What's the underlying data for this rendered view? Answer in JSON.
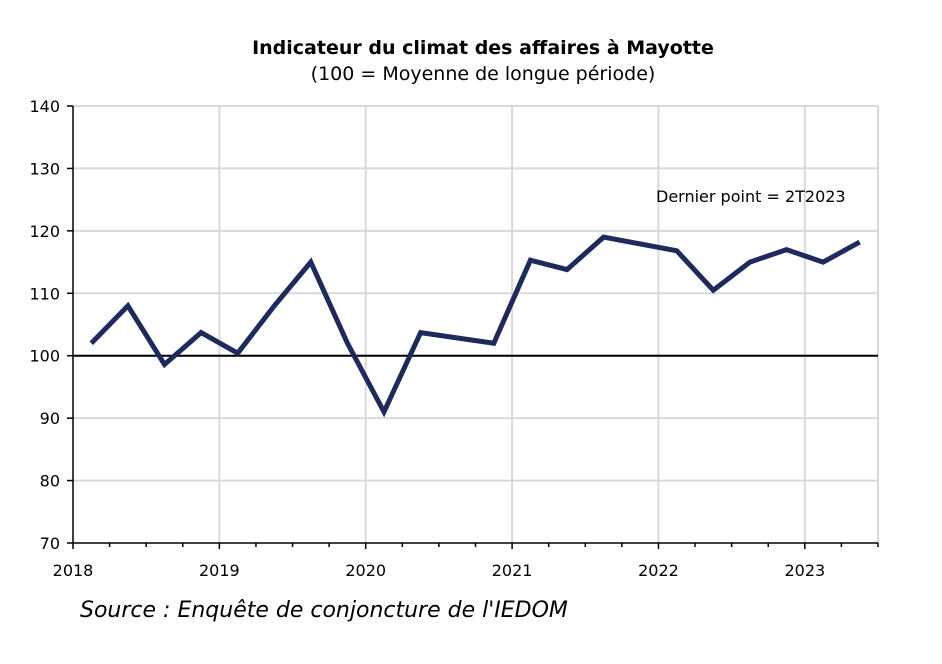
{
  "chart_data": {
    "type": "line",
    "title": "Indicateur du climat des affaires à Mayotte",
    "subtitle": "(100 = Moyenne de longue période)",
    "ylim": [
      70,
      140
    ],
    "yticks": [
      70,
      80,
      90,
      100,
      110,
      120,
      130,
      140
    ],
    "xlim": [
      2018,
      2023.5
    ],
    "xticks": [
      2018,
      2019,
      2020,
      2021,
      2022,
      2023
    ],
    "xtick_labels": [
      "2018",
      "2019",
      "2020",
      "2021",
      "2022",
      "2023"
    ],
    "reference_line": 100,
    "grid": true,
    "line_color": "#1f2a5c",
    "series": [
      {
        "values": [
          [
            2018.125,
            102.0
          ],
          [
            2018.375,
            108.0
          ],
          [
            2018.625,
            98.6
          ],
          [
            2018.875,
            103.7
          ],
          [
            2019.125,
            100.4
          ],
          [
            2019.375,
            108.0
          ],
          [
            2019.625,
            115.0
          ],
          [
            2019.875,
            102.0
          ],
          [
            2020.125,
            91.0
          ],
          [
            2020.375,
            103.7
          ],
          [
            2020.875,
            102.0
          ],
          [
            2021.125,
            115.3
          ],
          [
            2021.375,
            113.8
          ],
          [
            2021.625,
            119.0
          ],
          [
            2022.125,
            116.8
          ],
          [
            2022.375,
            110.5
          ],
          [
            2022.625,
            115.0
          ],
          [
            2022.875,
            117.0
          ],
          [
            2023.125,
            115.0
          ],
          [
            2023.375,
            118.2
          ]
        ]
      }
    ],
    "annotation": "Dernier point = 2T2023"
  },
  "source": "Source : Enquête de conjoncture de l'IEDOM"
}
